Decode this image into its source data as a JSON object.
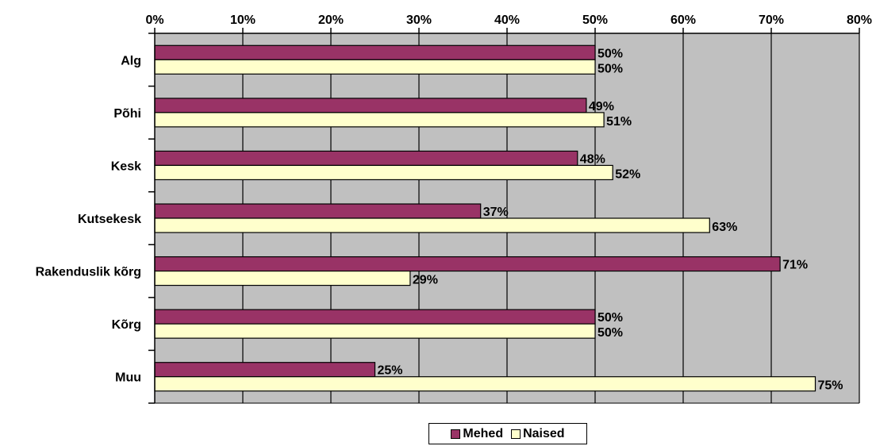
{
  "chart_data": {
    "type": "bar",
    "orientation": "horizontal",
    "categories": [
      "Alg",
      "Põhi",
      "Kesk",
      "Kutsekesk",
      "Rakenduslik kõrg",
      "Kõrg",
      "Muu"
    ],
    "series": [
      {
        "name": "Mehed",
        "color": "#993366",
        "values": [
          50,
          49,
          48,
          37,
          71,
          50,
          25
        ],
        "labels": [
          "50%",
          "49%",
          "48%",
          "37%",
          "71%",
          "50%",
          "25%"
        ]
      },
      {
        "name": "Naised",
        "color": "#FFFFCC",
        "values": [
          50,
          51,
          52,
          63,
          29,
          50,
          75
        ],
        "labels": [
          "50%",
          "51%",
          "52%",
          "63%",
          "29%",
          "50%",
          "75%"
        ]
      }
    ],
    "x_axis": {
      "min": 0,
      "max": 80,
      "step": 10,
      "tick_labels": [
        "0%",
        "10%",
        "20%",
        "30%",
        "40%",
        "50%",
        "60%",
        "70%",
        "80%"
      ],
      "position": "top"
    },
    "plot_background": "#C0C0C0",
    "gridlines": true,
    "legend_position": "bottom"
  }
}
